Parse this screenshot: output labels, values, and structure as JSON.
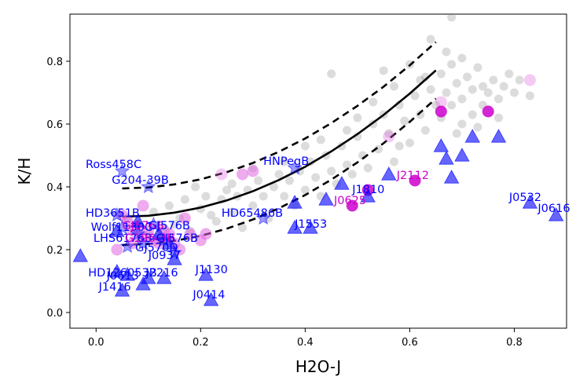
{
  "chart_data": {
    "type": "scatter",
    "title": "",
    "xlabel": "H2O-J",
    "ylabel": "K/H",
    "xlim": [
      -0.05,
      0.9
    ],
    "ylim": [
      -0.05,
      0.95
    ],
    "xticks": [
      "0.0",
      "0.2",
      "0.4",
      "0.6",
      "0.8"
    ],
    "yticks": [
      "0.0",
      "0.2",
      "0.4",
      "0.6",
      "0.8"
    ],
    "colors": {
      "field": "#808080",
      "blue": "#0000ff",
      "magenta": "#cc00cc",
      "light_magenta": "#e066e0",
      "curve": "#000000"
    },
    "background_points": [
      [
        0.06,
        0.3
      ],
      [
        0.08,
        0.28
      ],
      [
        0.1,
        0.25
      ],
      [
        0.11,
        0.32
      ],
      [
        0.13,
        0.27
      ],
      [
        0.14,
        0.34
      ],
      [
        0.16,
        0.3
      ],
      [
        0.17,
        0.36
      ],
      [
        0.18,
        0.26
      ],
      [
        0.19,
        0.4
      ],
      [
        0.2,
        0.33
      ],
      [
        0.21,
        0.37
      ],
      [
        0.23,
        0.29
      ],
      [
        0.24,
        0.36
      ],
      [
        0.25,
        0.39
      ],
      [
        0.26,
        0.32
      ],
      [
        0.27,
        0.37
      ],
      [
        0.28,
        0.27
      ],
      [
        0.29,
        0.39
      ],
      [
        0.3,
        0.34
      ],
      [
        0.31,
        0.42
      ],
      [
        0.32,
        0.37
      ],
      [
        0.33,
        0.3
      ],
      [
        0.34,
        0.4
      ],
      [
        0.35,
        0.44
      ],
      [
        0.36,
        0.37
      ],
      [
        0.37,
        0.42
      ],
      [
        0.38,
        0.34
      ],
      [
        0.39,
        0.45
      ],
      [
        0.4,
        0.39
      ],
      [
        0.41,
        0.48
      ],
      [
        0.42,
        0.43
      ],
      [
        0.43,
        0.37
      ],
      [
        0.44,
        0.5
      ],
      [
        0.45,
        0.45
      ],
      [
        0.46,
        0.41
      ],
      [
        0.47,
        0.53
      ],
      [
        0.48,
        0.47
      ],
      [
        0.49,
        0.44
      ],
      [
        0.5,
        0.56
      ],
      [
        0.51,
        0.5
      ],
      [
        0.52,
        0.46
      ],
      [
        0.53,
        0.6
      ],
      [
        0.54,
        0.52
      ],
      [
        0.55,
        0.63
      ],
      [
        0.56,
        0.57
      ],
      [
        0.57,
        0.48
      ],
      [
        0.58,
        0.66
      ],
      [
        0.59,
        0.61
      ],
      [
        0.6,
        0.54
      ],
      [
        0.61,
        0.69
      ],
      [
        0.62,
        0.63
      ],
      [
        0.63,
        0.58
      ],
      [
        0.64,
        0.71
      ],
      [
        0.65,
        0.66
      ],
      [
        0.66,
        0.76
      ],
      [
        0.66,
        0.62
      ],
      [
        0.67,
        0.83
      ],
      [
        0.67,
        0.7
      ],
      [
        0.68,
        0.79
      ],
      [
        0.68,
        0.66
      ],
      [
        0.69,
        0.73
      ],
      [
        0.7,
        0.81
      ],
      [
        0.7,
        0.68
      ],
      [
        0.71,
        0.75
      ],
      [
        0.72,
        0.71
      ],
      [
        0.72,
        0.63
      ],
      [
        0.73,
        0.78
      ],
      [
        0.74,
        0.72
      ],
      [
        0.74,
        0.66
      ],
      [
        0.75,
        0.7
      ],
      [
        0.76,
        0.74
      ],
      [
        0.77,
        0.68
      ],
      [
        0.78,
        0.72
      ],
      [
        0.79,
        0.76
      ],
      [
        0.8,
        0.7
      ],
      [
        0.81,
        0.74
      ],
      [
        0.83,
        0.69
      ],
      [
        0.45,
        0.76
      ],
      [
        0.55,
        0.77
      ],
      [
        0.64,
        0.87
      ],
      [
        0.68,
        0.94
      ],
      [
        0.6,
        0.79
      ],
      [
        0.53,
        0.67
      ],
      [
        0.63,
        0.75
      ],
      [
        0.5,
        0.62
      ],
      [
        0.58,
        0.53
      ],
      [
        0.57,
        0.72
      ],
      [
        0.77,
        0.62
      ],
      [
        0.73,
        0.59
      ],
      [
        0.69,
        0.57
      ],
      [
        0.62,
        0.74
      ],
      [
        0.48,
        0.58
      ],
      [
        0.4,
        0.53
      ],
      [
        0.36,
        0.48
      ],
      [
        0.22,
        0.31
      ],
      [
        0.15,
        0.28
      ],
      [
        0.12,
        0.24
      ],
      [
        0.26,
        0.41
      ],
      [
        0.3,
        0.46
      ],
      [
        0.43,
        0.55
      ],
      [
        0.7,
        0.6
      ]
    ],
    "curve": {
      "x": [
        0.05,
        0.1,
        0.15,
        0.2,
        0.25,
        0.3,
        0.35,
        0.4,
        0.45,
        0.5,
        0.55,
        0.6,
        0.65
      ],
      "y": [
        0.305,
        0.308,
        0.318,
        0.334,
        0.357,
        0.386,
        0.422,
        0.464,
        0.513,
        0.568,
        0.629,
        0.697,
        0.771
      ]
    },
    "curve_offset": 0.09,
    "dashed_upper": {
      "x": [
        0.05,
        0.1,
        0.15,
        0.2,
        0.25,
        0.3,
        0.35,
        0.4,
        0.45,
        0.5,
        0.55,
        0.6,
        0.65
      ],
      "y": [
        0.395,
        0.398,
        0.408,
        0.424,
        0.447,
        0.476,
        0.512,
        0.554,
        0.603,
        0.658,
        0.719,
        0.787,
        0.861
      ]
    },
    "dashed_lower": {
      "x": [
        0.05,
        0.1,
        0.15,
        0.2,
        0.25,
        0.3,
        0.35,
        0.4,
        0.45,
        0.5,
        0.55,
        0.6,
        0.65
      ],
      "y": [
        0.215,
        0.218,
        0.228,
        0.244,
        0.267,
        0.296,
        0.332,
        0.374,
        0.423,
        0.478,
        0.539,
        0.607,
        0.681
      ]
    },
    "magenta_circles": [
      [
        0.05,
        0.31
      ],
      [
        0.06,
        0.29
      ],
      [
        0.07,
        0.26
      ],
      [
        0.08,
        0.27
      ],
      [
        0.09,
        0.24
      ],
      [
        0.1,
        0.26
      ],
      [
        0.11,
        0.23
      ],
      [
        0.12,
        0.22
      ],
      [
        0.13,
        0.26
      ],
      [
        0.14,
        0.25
      ],
      [
        0.15,
        0.22
      ],
      [
        0.16,
        0.2
      ],
      [
        0.18,
        0.25
      ],
      [
        0.2,
        0.23
      ],
      [
        0.21,
        0.25
      ],
      [
        0.07,
        0.22
      ],
      [
        0.04,
        0.2
      ],
      [
        0.09,
        0.34
      ],
      [
        0.17,
        0.3
      ],
      [
        0.28,
        0.44
      ],
      [
        0.3,
        0.45
      ]
    ],
    "magenta_solid": [
      [
        0.49,
        0.34
      ],
      [
        0.52,
        0.39
      ],
      [
        0.61,
        0.42
      ],
      [
        0.66,
        0.64
      ],
      [
        0.75,
        0.64
      ]
    ],
    "magenta_faint": [
      [
        0.24,
        0.44
      ],
      [
        0.56,
        0.56
      ],
      [
        0.83,
        0.74
      ],
      [
        0.66,
        0.67
      ]
    ],
    "blue_triangles": [
      [
        0.04,
        0.13
      ],
      [
        0.05,
        0.07
      ],
      [
        0.06,
        0.12
      ],
      [
        0.09,
        0.09
      ],
      [
        0.1,
        0.11
      ],
      [
        0.13,
        0.11
      ],
      [
        0.15,
        0.17
      ],
      [
        0.21,
        0.12
      ],
      [
        0.22,
        0.04
      ],
      [
        0.41,
        0.27
      ],
      [
        0.52,
        0.37
      ],
      [
        0.67,
        0.49
      ],
      [
        0.68,
        0.43
      ],
      [
        0.66,
        0.53
      ],
      [
        0.83,
        0.35
      ],
      [
        0.88,
        0.31
      ],
      [
        0.38,
        0.27
      ],
      [
        0.38,
        0.35
      ],
      [
        0.56,
        0.44
      ],
      [
        0.7,
        0.5
      ],
      [
        0.72,
        0.56
      ],
      [
        0.77,
        0.56
      ],
      [
        0.47,
        0.41
      ],
      [
        -0.03,
        0.18
      ],
      [
        0.44,
        0.36
      ],
      [
        0.04,
        0.26
      ],
      [
        0.08,
        0.29
      ],
      [
        0.14,
        0.22
      ],
      [
        0.12,
        0.25
      ]
    ],
    "blue_stars": [
      [
        0.05,
        0.45
      ],
      [
        0.1,
        0.4
      ],
      [
        0.38,
        0.46
      ],
      [
        0.32,
        0.3
      ],
      [
        0.06,
        0.21
      ],
      [
        0.05,
        0.27
      ],
      [
        0.04,
        0.31
      ],
      [
        0.13,
        0.23
      ],
      [
        0.15,
        0.19
      ],
      [
        0.09,
        0.22
      ],
      [
        0.08,
        0.25
      ],
      [
        0.11,
        0.28
      ]
    ],
    "labels": [
      {
        "text": "Ross458C",
        "x": -0.02,
        "y": 0.46,
        "color": "blue"
      },
      {
        "text": "G204-39B",
        "x": 0.03,
        "y": 0.41,
        "color": "blue"
      },
      {
        "text": "HNPegB",
        "x": 0.32,
        "y": 0.47,
        "color": "blue"
      },
      {
        "text": "HD3651B",
        "x": -0.02,
        "y": 0.305,
        "color": "blue"
      },
      {
        "text": "HD65486B",
        "x": 0.24,
        "y": 0.305,
        "color": "blue"
      },
      {
        "text": "J1553",
        "x": 0.38,
        "y": 0.27,
        "color": "blue"
      },
      {
        "text": "J1810",
        "x": 0.49,
        "y": 0.38,
        "color": "blue"
      },
      {
        "text": "J0625",
        "x": 0.455,
        "y": 0.345,
        "color": "magenta"
      },
      {
        "text": "J2112",
        "x": 0.575,
        "y": 0.425,
        "color": "magenta"
      },
      {
        "text": "J0532",
        "x": 0.79,
        "y": 0.355,
        "color": "blue"
      },
      {
        "text": "J0616",
        "x": 0.845,
        "y": 0.32,
        "color": "blue"
      },
      {
        "text": "Wolf1130C",
        "x": -0.01,
        "y": 0.26,
        "color": "blue"
      },
      {
        "text": "GJ576B",
        "x": 0.05,
        "y": 0.265,
        "color": "magenta"
      },
      {
        "text": "GJ576B",
        "x": 0.1,
        "y": 0.265,
        "color": "blue"
      },
      {
        "text": "LHS6176B",
        "x": -0.005,
        "y": 0.225,
        "color": "blue"
      },
      {
        "text": "G196-3B",
        "x": 0.055,
        "y": 0.225,
        "color": "magenta"
      },
      {
        "text": "GJ576B",
        "x": 0.115,
        "y": 0.225,
        "color": "blue"
      },
      {
        "text": "GJ570D",
        "x": 0.075,
        "y": 0.195,
        "color": "blue"
      },
      {
        "text": "J0937",
        "x": 0.1,
        "y": 0.17,
        "color": "blue"
      },
      {
        "text": "HD126053B",
        "x": -0.015,
        "y": 0.115,
        "color": "blue"
      },
      {
        "text": "J2216",
        "x": 0.095,
        "y": 0.115,
        "color": "blue"
      },
      {
        "text": "J0613",
        "x": 0.02,
        "y": 0.105,
        "color": "blue"
      },
      {
        "text": "J1130",
        "x": 0.19,
        "y": 0.125,
        "color": "blue"
      },
      {
        "text": "J1416",
        "x": 0.005,
        "y": 0.07,
        "color": "blue"
      },
      {
        "text": "J0414",
        "x": 0.185,
        "y": 0.045,
        "color": "blue"
      }
    ]
  }
}
